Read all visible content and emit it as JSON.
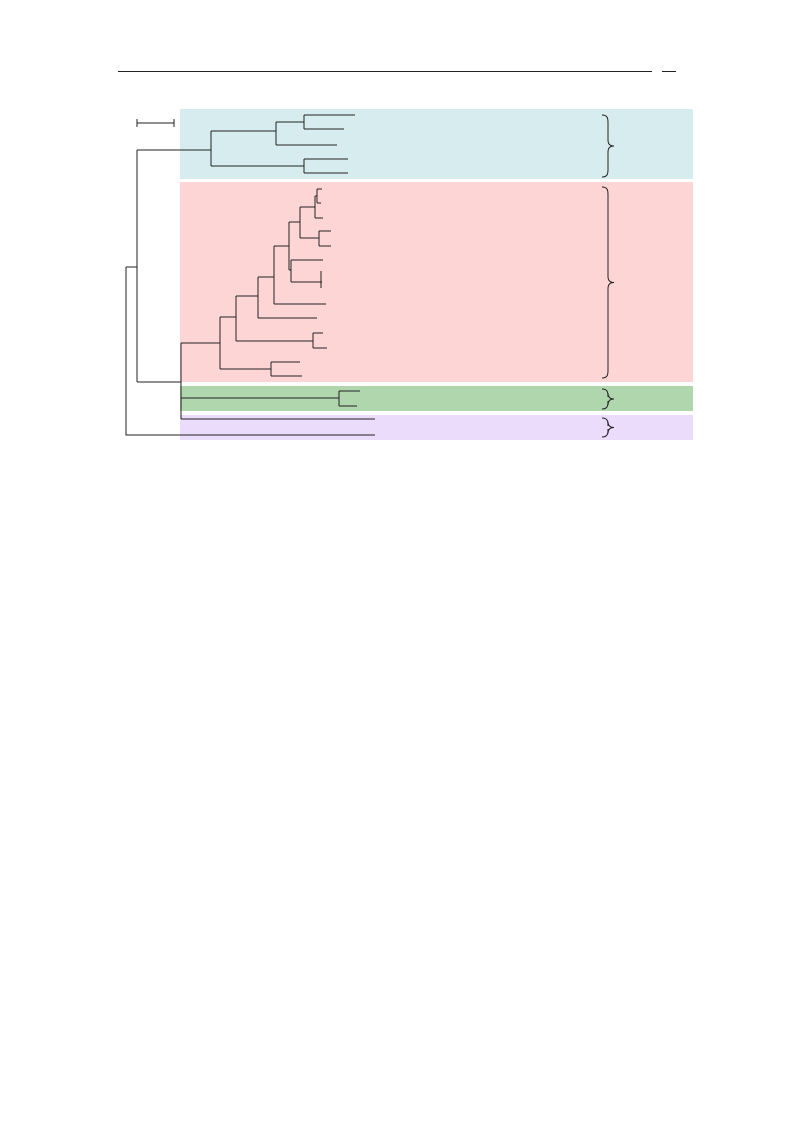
{
  "figure": {
    "clades": [
      {
        "key": "blue",
        "color": "#d7ecef"
      },
      {
        "key": "red",
        "color": "#fdd5d5"
      },
      {
        "key": "green",
        "color": "#afd6ad"
      },
      {
        "key": "purple",
        "color": "#ecdcfc"
      }
    ],
    "line_color": "#222222"
  }
}
